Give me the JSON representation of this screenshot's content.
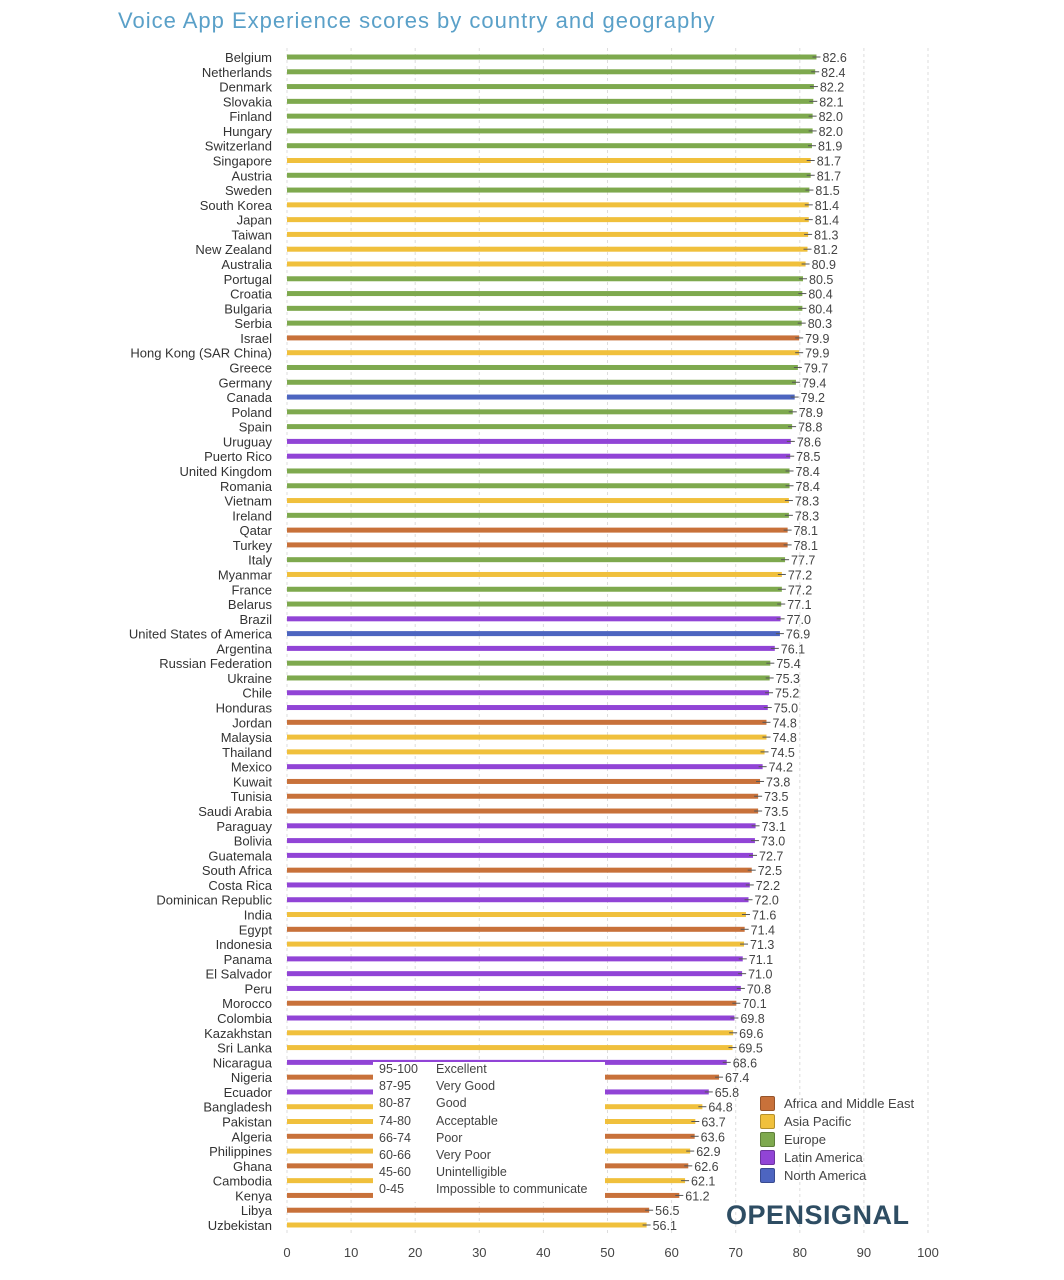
{
  "chart_data": {
    "type": "bar",
    "orientation": "horizontal",
    "title": "Voice App Experience scores by country and geography",
    "xlim": [
      0,
      100
    ],
    "xticks": [
      0,
      10,
      20,
      30,
      40,
      50,
      60,
      70,
      80,
      90,
      100
    ],
    "grid": true,
    "region_colors": {
      "Africa and Middle East": "#c8713a",
      "Asia Pacific": "#f0c03c",
      "Europe": "#7ea94e",
      "Latin America": "#9144d6",
      "North America": "#4d65c0"
    },
    "legend": {
      "placement": "bottom-right",
      "entries": [
        "Africa and Middle East",
        "Asia Pacific",
        "Europe",
        "Latin America",
        "North America"
      ]
    },
    "grades": [
      [
        "95-100",
        "Excellent"
      ],
      [
        "87-95",
        "Very Good"
      ],
      [
        "80-87",
        "Good"
      ],
      [
        "74-80",
        "Acceptable"
      ],
      [
        "66-74",
        "Poor"
      ],
      [
        "60-66",
        "Very Poor"
      ],
      [
        "45-60",
        "Unintelligible"
      ],
      [
        "0-45",
        "Impossible to communicate"
      ]
    ],
    "categories": [
      "Belgium",
      "Netherlands",
      "Denmark",
      "Slovakia",
      "Finland",
      "Hungary",
      "Switzerland",
      "Singapore",
      "Austria",
      "Sweden",
      "South Korea",
      "Japan",
      "Taiwan",
      "New Zealand",
      "Australia",
      "Portugal",
      "Croatia",
      "Bulgaria",
      "Serbia",
      "Israel",
      "Hong Kong (SAR China)",
      "Greece",
      "Germany",
      "Canada",
      "Poland",
      "Spain",
      "Uruguay",
      "Puerto Rico",
      "United Kingdom",
      "Romania",
      "Vietnam",
      "Ireland",
      "Qatar",
      "Turkey",
      "Italy",
      "Myanmar",
      "France",
      "Belarus",
      "Brazil",
      "United States of America",
      "Argentina",
      "Russian Federation",
      "Ukraine",
      "Chile",
      "Honduras",
      "Jordan",
      "Malaysia",
      "Thailand",
      "Mexico",
      "Kuwait",
      "Tunisia",
      "Saudi Arabia",
      "Paraguay",
      "Bolivia",
      "Guatemala",
      "South Africa",
      "Costa Rica",
      "Dominican Republic",
      "India",
      "Egypt",
      "Indonesia",
      "Panama",
      "El Salvador",
      "Peru",
      "Morocco",
      "Colombia",
      "Kazakhstan",
      "Sri Lanka",
      "Nicaragua",
      "Nigeria",
      "Ecuador",
      "Bangladesh",
      "Pakistan",
      "Algeria",
      "Philippines",
      "Ghana",
      "Cambodia",
      "Kenya",
      "Libya",
      "Uzbekistan"
    ],
    "values": [
      82.6,
      82.4,
      82.2,
      82.1,
      82.0,
      82.0,
      81.9,
      81.7,
      81.7,
      81.5,
      81.4,
      81.4,
      81.3,
      81.2,
      80.9,
      80.5,
      80.4,
      80.4,
      80.3,
      79.9,
      79.9,
      79.7,
      79.4,
      79.2,
      78.9,
      78.8,
      78.6,
      78.5,
      78.4,
      78.4,
      78.3,
      78.3,
      78.1,
      78.1,
      77.7,
      77.2,
      77.2,
      77.1,
      77.0,
      76.9,
      76.1,
      75.4,
      75.3,
      75.2,
      75.0,
      74.8,
      74.8,
      74.5,
      74.2,
      73.8,
      73.5,
      73.5,
      73.1,
      73.0,
      72.7,
      72.5,
      72.2,
      72.0,
      71.6,
      71.4,
      71.3,
      71.1,
      71.0,
      70.8,
      70.1,
      69.8,
      69.6,
      69.5,
      68.6,
      67.4,
      65.8,
      64.8,
      63.7,
      63.6,
      62.9,
      62.6,
      62.1,
      61.2,
      56.5,
      56.1
    ],
    "regions": [
      "Europe",
      "Europe",
      "Europe",
      "Europe",
      "Europe",
      "Europe",
      "Europe",
      "Asia Pacific",
      "Europe",
      "Europe",
      "Asia Pacific",
      "Asia Pacific",
      "Asia Pacific",
      "Asia Pacific",
      "Asia Pacific",
      "Europe",
      "Europe",
      "Europe",
      "Europe",
      "Africa and Middle East",
      "Asia Pacific",
      "Europe",
      "Europe",
      "North America",
      "Europe",
      "Europe",
      "Latin America",
      "Latin America",
      "Europe",
      "Europe",
      "Asia Pacific",
      "Europe",
      "Africa and Middle East",
      "Africa and Middle East",
      "Europe",
      "Asia Pacific",
      "Europe",
      "Europe",
      "Latin America",
      "North America",
      "Latin America",
      "Europe",
      "Europe",
      "Latin America",
      "Latin America",
      "Africa and Middle East",
      "Asia Pacific",
      "Asia Pacific",
      "Latin America",
      "Africa and Middle East",
      "Africa and Middle East",
      "Africa and Middle East",
      "Latin America",
      "Latin America",
      "Latin America",
      "Africa and Middle East",
      "Latin America",
      "Latin America",
      "Asia Pacific",
      "Africa and Middle East",
      "Asia Pacific",
      "Latin America",
      "Latin America",
      "Latin America",
      "Africa and Middle East",
      "Latin America",
      "Asia Pacific",
      "Asia Pacific",
      "Latin America",
      "Africa and Middle East",
      "Latin America",
      "Asia Pacific",
      "Asia Pacific",
      "Africa and Middle East",
      "Asia Pacific",
      "Africa and Middle East",
      "Asia Pacific",
      "Africa and Middle East",
      "Africa and Middle East",
      "Asia Pacific"
    ]
  },
  "brand": "OPENSIGNAL"
}
